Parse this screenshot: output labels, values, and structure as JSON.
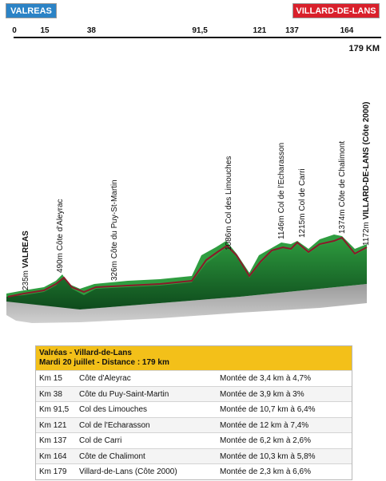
{
  "header": {
    "start_label": "VALREAS",
    "finish_label": "VILLARD-DE-LANS",
    "start_color": "#2b83c6",
    "finish_color": "#d9202b"
  },
  "km_markers": [
    "0",
    "15",
    "38",
    "91,5",
    "121",
    "137",
    "164"
  ],
  "km_marker_values": [
    0,
    15,
    38,
    91.5,
    121,
    137,
    164
  ],
  "total_distance": "179 KM",
  "profile_labels": {
    "start": {
      "alt": "235m",
      "name": "VALREAS"
    },
    "finish": {
      "alt": "1172m",
      "name": "VILLARD-DE-LANS (Côte 2000)"
    },
    "climbs": [
      {
        "alt": "490m",
        "name": "Côte d'Aleyrac",
        "km": 15
      },
      {
        "alt": "326m",
        "name": "Côte du Puy-St-Martin",
        "km": 38
      },
      {
        "alt": "1086m",
        "name": "Col des Limouches",
        "km": 91.5
      },
      {
        "alt": "1146m",
        "name": "Col de l'Echarasson",
        "km": 121
      },
      {
        "alt": "1215m",
        "name": "Col de Carri",
        "km": 137
      },
      {
        "alt": "1374m",
        "name": "Côte de Chalimont",
        "km": 164
      }
    ]
  },
  "stage": {
    "title": "Valréas - Villard-de-Lans",
    "subtitle": "Mardi 20 juillet - Distance : 179 km",
    "rows": [
      {
        "km": "Km 15",
        "name": "Côte d'Aleyrac",
        "desc": "Montée de 3,4 km à 4,7%"
      },
      {
        "km": "Km 38",
        "name": "Côte du Puy-Saint-Martin",
        "desc": "Montée de 3,9 km à 3%"
      },
      {
        "km": "Km 91,5",
        "name": "Col des Limouches",
        "desc": "Montée de 10,7 km à 6,4%"
      },
      {
        "km": "Km 121",
        "name": "Col de l'Echarasson",
        "desc": "Montée de 12 km à 7,4%"
      },
      {
        "km": "Km 137",
        "name": "Col de Carri",
        "desc": "Montée de 6,2 km à 2,6%"
      },
      {
        "km": "Km 164",
        "name": "Côte de Chalimont",
        "desc": "Montée de 10,3 km à 5,8%"
      },
      {
        "km": "Km 179",
        "name": "Villard-de-Lans (Côte 2000)",
        "desc": "Montée de 2,3 km à 6,6%"
      }
    ]
  },
  "colors": {
    "terrain_top": "#1f8a32",
    "terrain_bottom": "#0b3d17",
    "profile_line": "#8a1a2a",
    "side": "#7a7a7a"
  }
}
